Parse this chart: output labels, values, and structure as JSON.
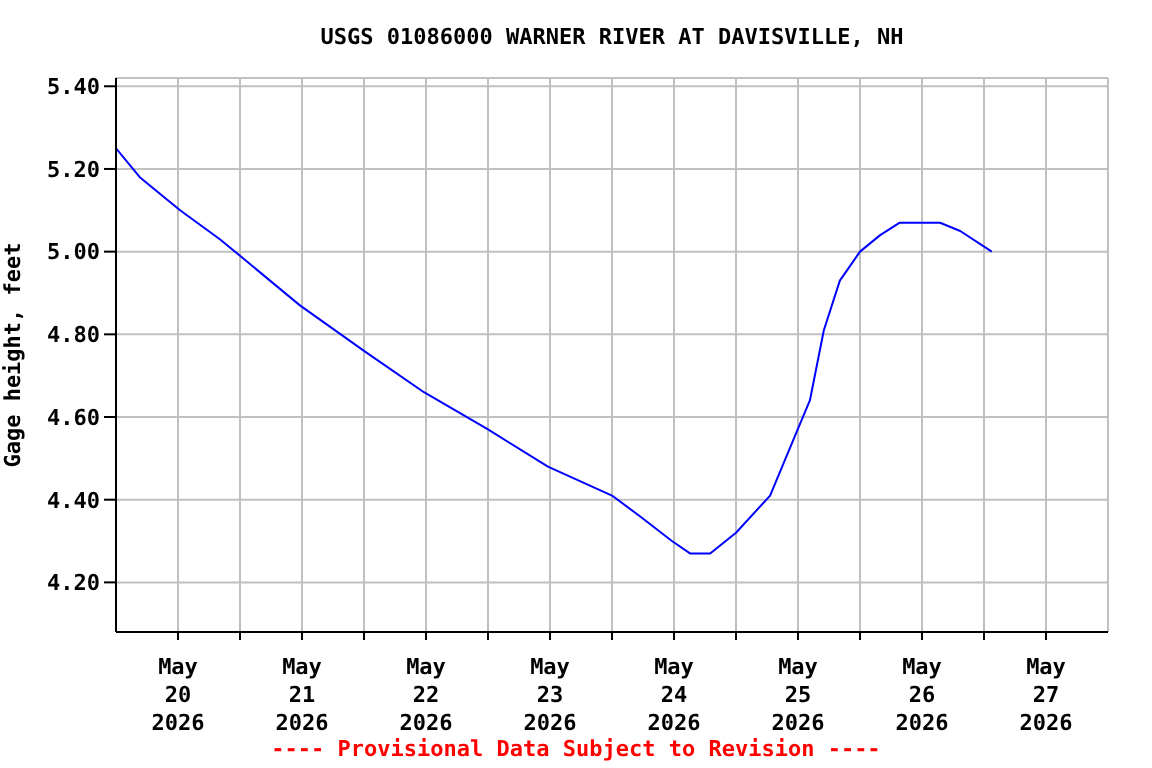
{
  "chart_data": {
    "type": "line",
    "title": "USGS 01086000 WARNER RIVER AT DAVISVILLE, NH",
    "ylabel": "Gage height, feet",
    "annotations": [
      "---- Provisional Data Subject to Revision ----"
    ],
    "x": [
      "2026-05-20T00:00",
      "2026-05-20T04:36",
      "2026-05-20T12:24",
      "2026-05-20T20:06",
      "2026-05-21T00:00",
      "2026-05-21T11:36",
      "2026-05-22T00:00",
      "2026-05-22T11:36",
      "2026-05-23T00:00",
      "2026-05-23T11:36",
      "2026-05-24T00:00",
      "2026-05-24T05:24",
      "2026-05-24T11:36",
      "2026-05-24T15:06",
      "2026-05-24T19:00",
      "2026-05-25T00:00",
      "2026-05-25T06:36",
      "2026-05-25T11:36",
      "2026-05-25T14:18",
      "2026-05-25T17:00",
      "2026-05-25T20:06",
      "2026-05-26T00:00",
      "2026-05-26T03:54",
      "2026-05-26T07:42",
      "2026-05-26T15:30",
      "2026-05-26T19:24",
      "2026-05-27T01:30"
    ],
    "series": [
      {
        "color": "#0000ff",
        "values": [
          5.25,
          5.18,
          5.1,
          5.03,
          4.99,
          4.87,
          4.76,
          4.66,
          4.57,
          4.48,
          4.41,
          4.36,
          4.3,
          4.27,
          4.27,
          4.32,
          4.41,
          4.56,
          4.64,
          4.81,
          4.93,
          5.0,
          5.04,
          5.07,
          5.07,
          5.05,
          5.0
        ]
      }
    ],
    "xlim": [
      "2026-05-20T00:00",
      "2026-05-28T00:00"
    ],
    "xticks": [
      {
        "value": "2026-05-20T12:00",
        "label": "May\n20\n2026"
      },
      {
        "value": "2026-05-21T00:00",
        "label": null
      },
      {
        "value": "2026-05-21T12:00",
        "label": "May\n21\n2026"
      },
      {
        "value": "2026-05-22T00:00",
        "label": null
      },
      {
        "value": "2026-05-22T12:00",
        "label": "May\n22\n2026"
      },
      {
        "value": "2026-05-23T00:00",
        "label": null
      },
      {
        "value": "2026-05-23T12:00",
        "label": "May\n23\n2026"
      },
      {
        "value": "2026-05-24T00:00",
        "label": null
      },
      {
        "value": "2026-05-24T12:00",
        "label": "May\n24\n2026"
      },
      {
        "value": "2026-05-25T00:00",
        "label": null
      },
      {
        "value": "2026-05-25T12:00",
        "label": "May\n25\n2026"
      },
      {
        "value": "2026-05-26T00:00",
        "label": null
      },
      {
        "value": "2026-05-26T12:00",
        "label": "May\n26\n2026"
      },
      {
        "value": "2026-05-27T00:00",
        "label": null
      },
      {
        "value": "2026-05-27T12:00",
        "label": "May\n27\n2026"
      }
    ],
    "ylim": [
      4.08,
      5.42
    ],
    "yticks": [
      {
        "value": 4.2,
        "label": "4.20"
      },
      {
        "value": 4.4,
        "label": "4.40"
      },
      {
        "value": 4.6,
        "label": "4.60"
      },
      {
        "value": 4.8,
        "label": "4.80"
      },
      {
        "value": 5.0,
        "label": "5.00"
      },
      {
        "value": 5.2,
        "label": "5.20"
      },
      {
        "value": 5.4,
        "label": "5.40"
      }
    ],
    "grid": true,
    "legend": false,
    "marker": "none",
    "line_style": "solid"
  }
}
